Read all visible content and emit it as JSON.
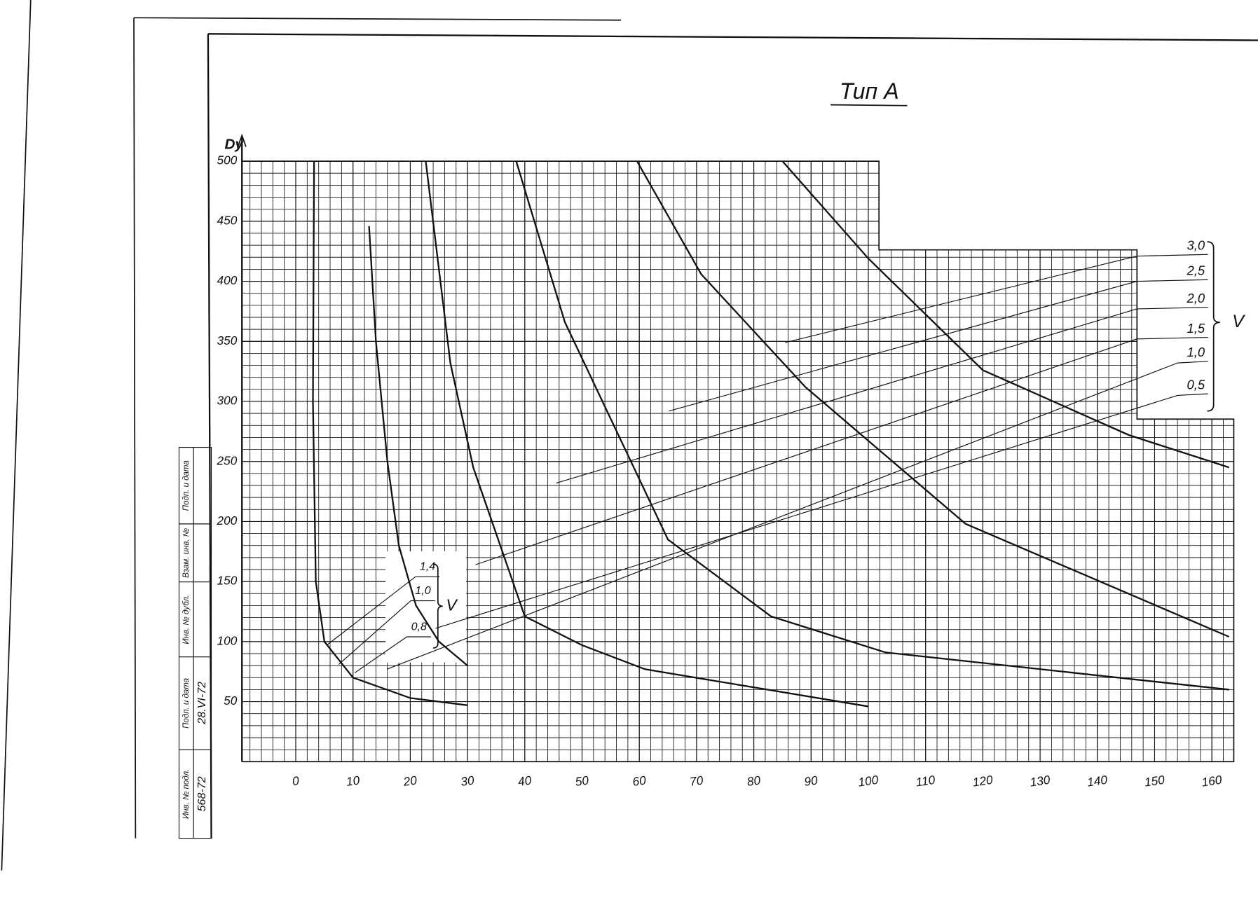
{
  "chart_data": {
    "type": "line",
    "title": "Тип А",
    "y_label": "Dy",
    "xlim": [
      -9.4,
      162.7
    ],
    "ylim": [
      0,
      500
    ],
    "xticks": [
      0,
      10,
      20,
      30,
      40,
      50,
      60,
      70,
      80,
      90,
      100,
      110,
      120,
      130,
      140,
      150,
      160
    ],
    "yticks": [
      50,
      100,
      150,
      200,
      250,
      300,
      350,
      400,
      450,
      500
    ],
    "grid": true,
    "right_group_label": "V",
    "box_group_label": "V",
    "series": [
      {
        "line_width": 2,
        "x": [
          3.2,
          3.0,
          3.5,
          5,
          10,
          20,
          30
        ],
        "values": [
          500,
          300,
          150,
          100,
          70,
          53,
          47
        ]
      },
      {
        "line_width": 2,
        "x": [
          12.8,
          14,
          16,
          18,
          21,
          25,
          30
        ],
        "values": [
          446,
          350,
          250,
          180,
          130,
          100,
          80
        ]
      },
      {
        "line_width": 2,
        "x": [
          22.7,
          27,
          31,
          40,
          50,
          61,
          100
        ],
        "values": [
          500,
          332,
          245,
          121,
          97,
          77,
          46
        ]
      },
      {
        "line_width": 2,
        "x": [
          38.5,
          47,
          65,
          83,
          103,
          163
        ],
        "values": [
          500,
          366,
          185,
          121,
          91,
          60
        ]
      },
      {
        "line_width": 2,
        "x": [
          59.6,
          70.8,
          89,
          117,
          163
        ],
        "values": [
          500,
          406,
          312,
          198,
          104
        ]
      },
      {
        "line_width": 2,
        "x": [
          85,
          100,
          120,
          145.5,
          163
        ],
        "values": [
          500,
          419,
          326,
          272,
          245
        ]
      },
      {
        "name": "3,0",
        "group": "right",
        "line_width": 1,
        "x": [
          85.5,
          146.9
        ],
        "values": [
          349,
          421
        ]
      },
      {
        "name": "2,5",
        "group": "right",
        "line_width": 1,
        "x": [
          65.2,
          146.9
        ],
        "values": [
          292,
          400
        ]
      },
      {
        "name": "2,0",
        "group": "right",
        "line_width": 1,
        "x": [
          45.5,
          146.9
        ],
        "values": [
          232,
          377
        ]
      },
      {
        "name": "1,5",
        "group": "right",
        "line_width": 1,
        "x": [
          31.4,
          146.9
        ],
        "values": [
          164,
          352
        ]
      },
      {
        "name": "1,0",
        "group": "right",
        "line_width": 1,
        "x": [
          15.9,
          154
        ],
        "values": [
          77,
          332
        ]
      },
      {
        "name": "0,5",
        "group": "right",
        "line_width": 1,
        "x": [
          24.4,
          154
        ],
        "values": [
          111,
          305
        ]
      },
      {
        "name": "1,4",
        "group": "box",
        "line_width": 1,
        "x": [
          5.4,
          20.9
        ],
        "values": [
          97,
          154
        ]
      },
      {
        "name": "1,0",
        "group": "box",
        "line_width": 1,
        "x": [
          7.5,
          20.1
        ],
        "values": [
          81,
          134
        ]
      },
      {
        "name": "0,8",
        "group": "box",
        "line_width": 1,
        "x": [
          10.3,
          19.4
        ],
        "values": [
          74,
          104
        ]
      }
    ]
  },
  "stamp": {
    "headers": [
      "Подп. и дата",
      "Взам. инв. №",
      "Инв. № дубл.",
      "Подп. и дата",
      "Инв. № подл."
    ],
    "entries": [
      "28.VI-72",
      "568-72"
    ]
  }
}
